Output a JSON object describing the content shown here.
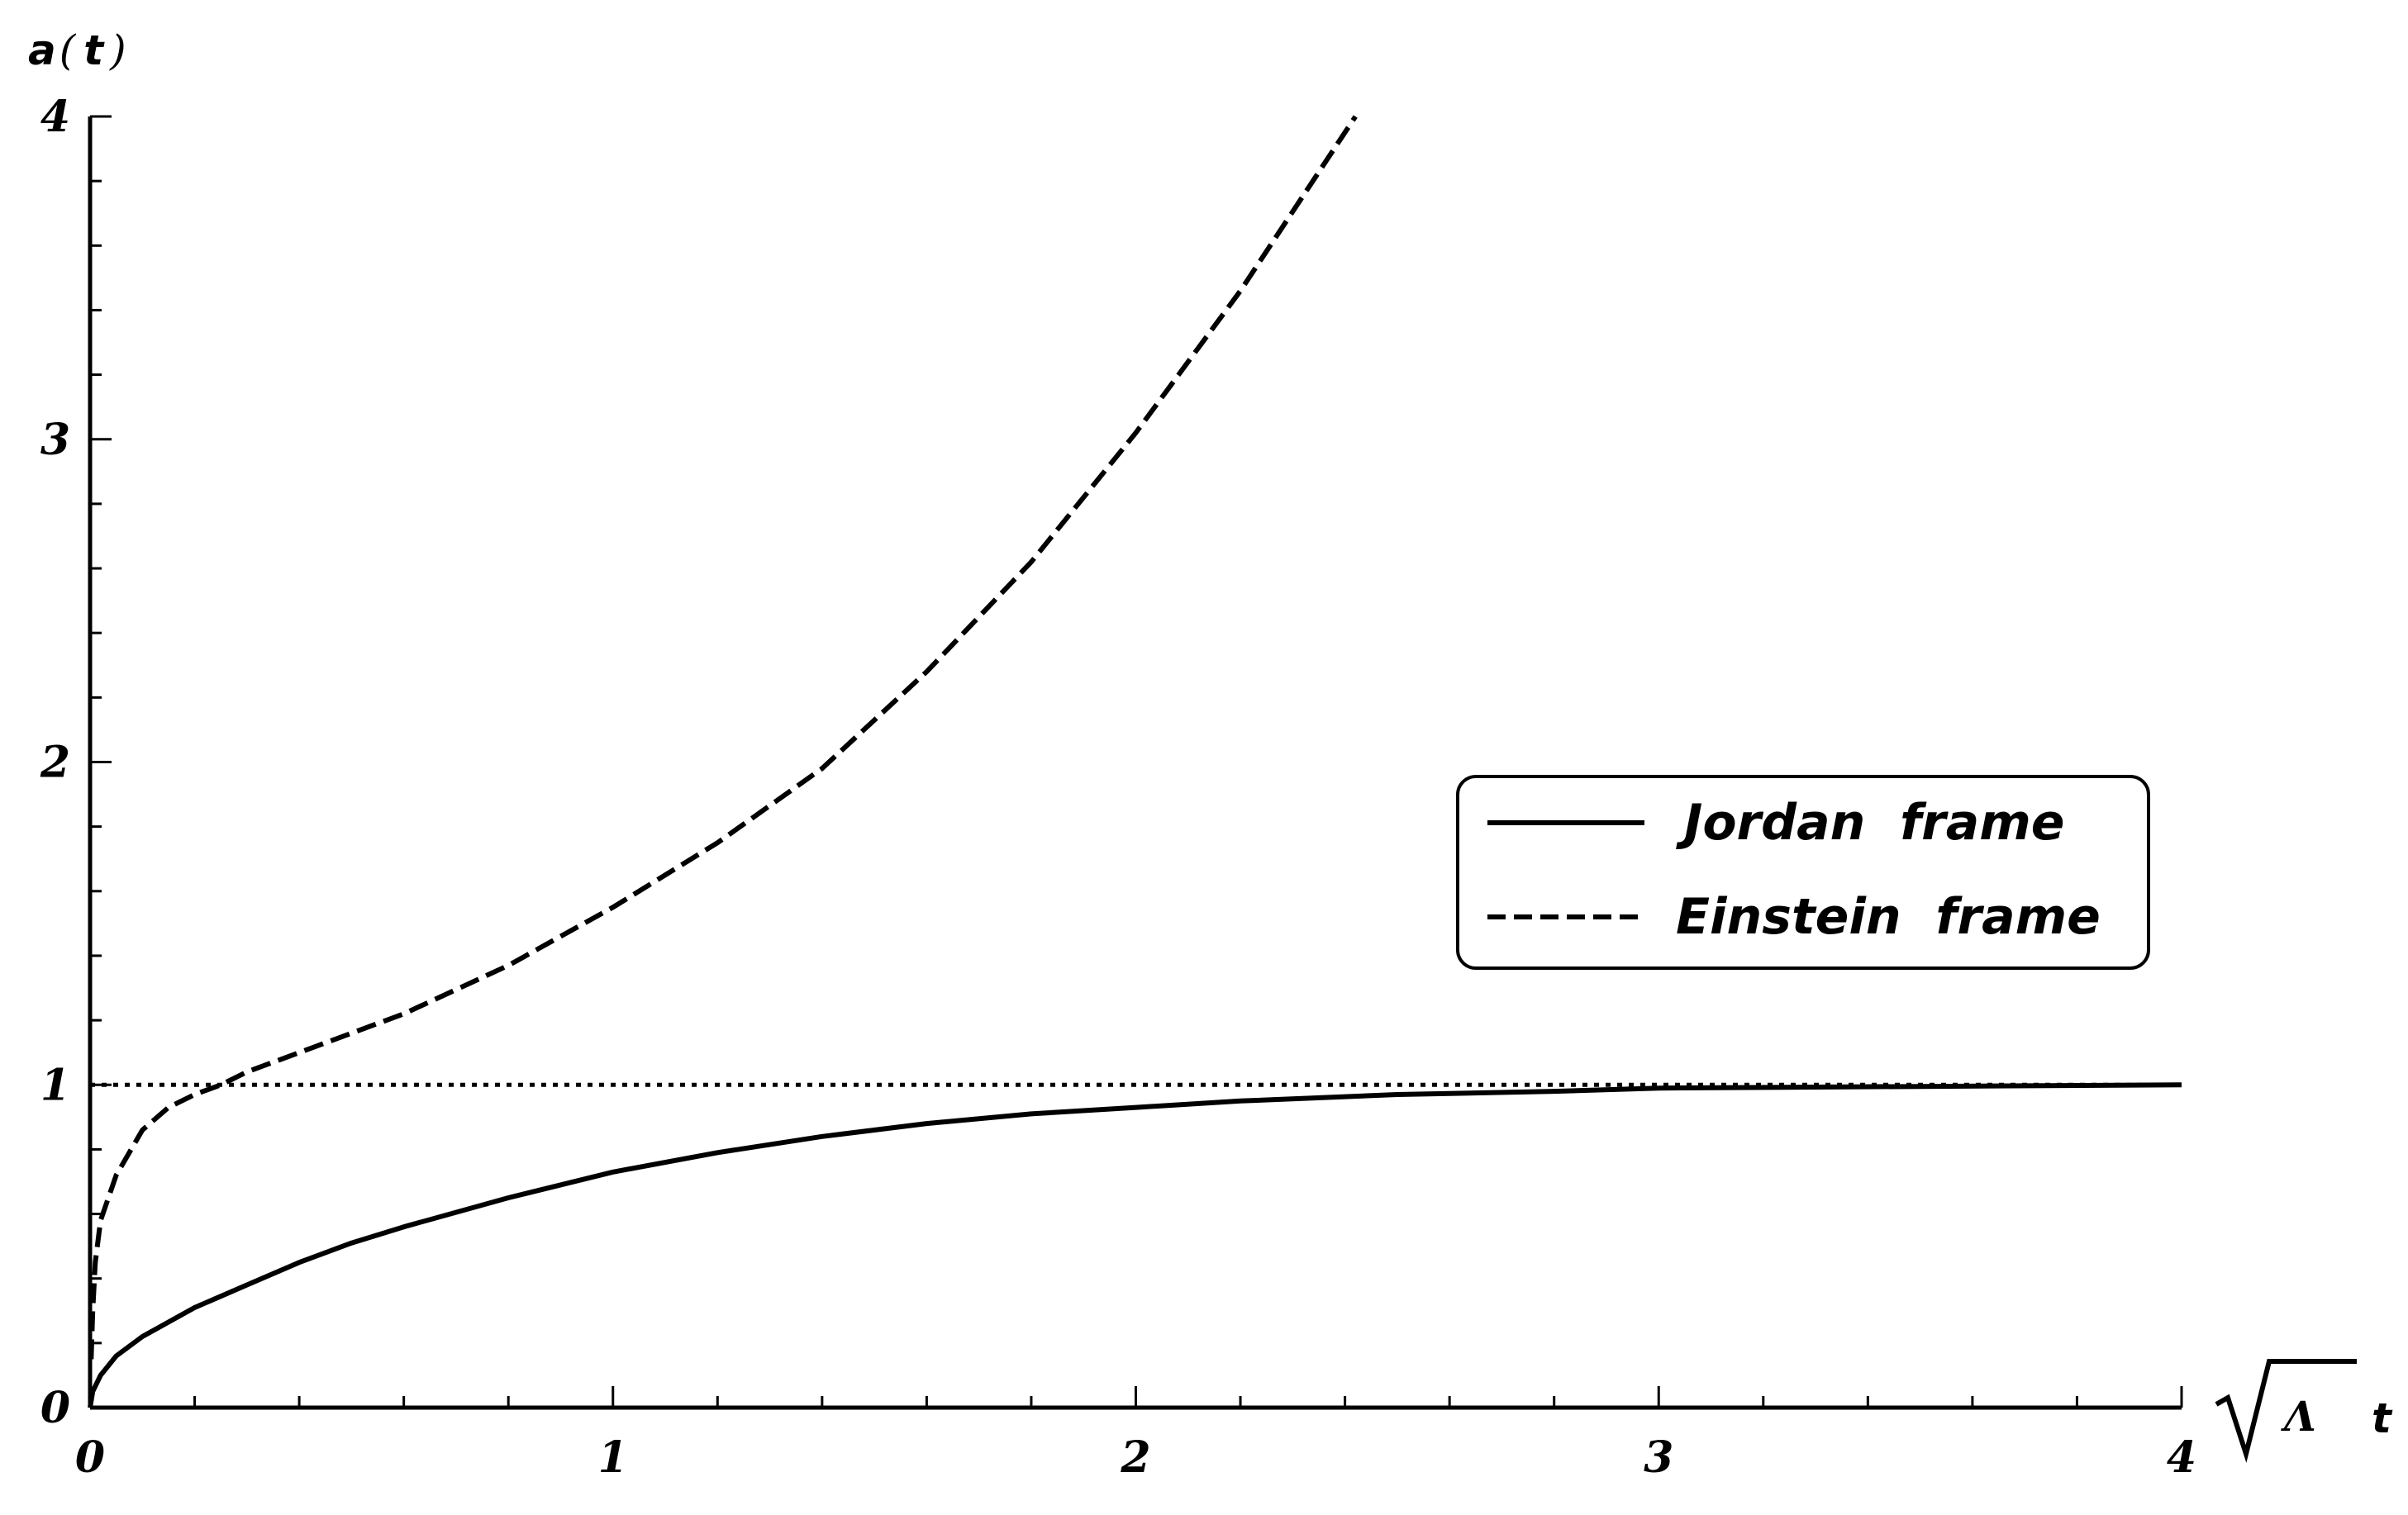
{
  "chart_data": {
    "type": "line",
    "xlabel": {
      "radical": "Λ",
      "var": "t"
    },
    "ylabel": {
      "prefix": "a",
      "open": "(",
      "var": "t",
      "close": ")"
    },
    "xlim": [
      0,
      4
    ],
    "ylim": [
      0,
      4
    ],
    "x_ticks": [
      "0",
      "1",
      "2",
      "3",
      "4"
    ],
    "y_ticks": [
      "0",
      "1",
      "2",
      "3",
      "4"
    ],
    "grid": false,
    "legend_position": "right",
    "series": [
      {
        "name": "Jordan  frame",
        "style": "solid",
        "color": "#000000",
        "points": [
          [
            0,
            0
          ],
          [
            0.005,
            0.05
          ],
          [
            0.02,
            0.1
          ],
          [
            0.05,
            0.16
          ],
          [
            0.1,
            0.22
          ],
          [
            0.2,
            0.31
          ],
          [
            0.3,
            0.38
          ],
          [
            0.4,
            0.45
          ],
          [
            0.5,
            0.51
          ],
          [
            0.6,
            0.56
          ],
          [
            0.8,
            0.65
          ],
          [
            1.0,
            0.73
          ],
          [
            1.2,
            0.79
          ],
          [
            1.4,
            0.84
          ],
          [
            1.6,
            0.88
          ],
          [
            1.8,
            0.91
          ],
          [
            2.0,
            0.93
          ],
          [
            2.2,
            0.95
          ],
          [
            2.5,
            0.97
          ],
          [
            2.8,
            0.98
          ],
          [
            3.0,
            0.99
          ],
          [
            3.5,
            0.995
          ],
          [
            4.0,
            1.0
          ]
        ]
      },
      {
        "name": "Einstein  frame",
        "style": "dashed",
        "color": "#000000",
        "points": [
          [
            0.002,
            0.15
          ],
          [
            0.005,
            0.3
          ],
          [
            0.01,
            0.45
          ],
          [
            0.02,
            0.58
          ],
          [
            0.05,
            0.72
          ],
          [
            0.1,
            0.86
          ],
          [
            0.15,
            0.93
          ],
          [
            0.2,
            0.97
          ],
          [
            0.25,
            1.0
          ],
          [
            0.3,
            1.04
          ],
          [
            0.4,
            1.1
          ],
          [
            0.5,
            1.16
          ],
          [
            0.6,
            1.22
          ],
          [
            0.8,
            1.37
          ],
          [
            1.0,
            1.55
          ],
          [
            1.2,
            1.75
          ],
          [
            1.4,
            1.98
          ],
          [
            1.6,
            2.28
          ],
          [
            1.8,
            2.62
          ],
          [
            2.0,
            3.02
          ],
          [
            2.2,
            3.46
          ],
          [
            2.42,
            4.0
          ]
        ]
      },
      {
        "name": "",
        "style": "dotted",
        "color": "#000000",
        "points": [
          [
            0,
            1
          ],
          [
            4,
            1
          ]
        ]
      }
    ]
  }
}
